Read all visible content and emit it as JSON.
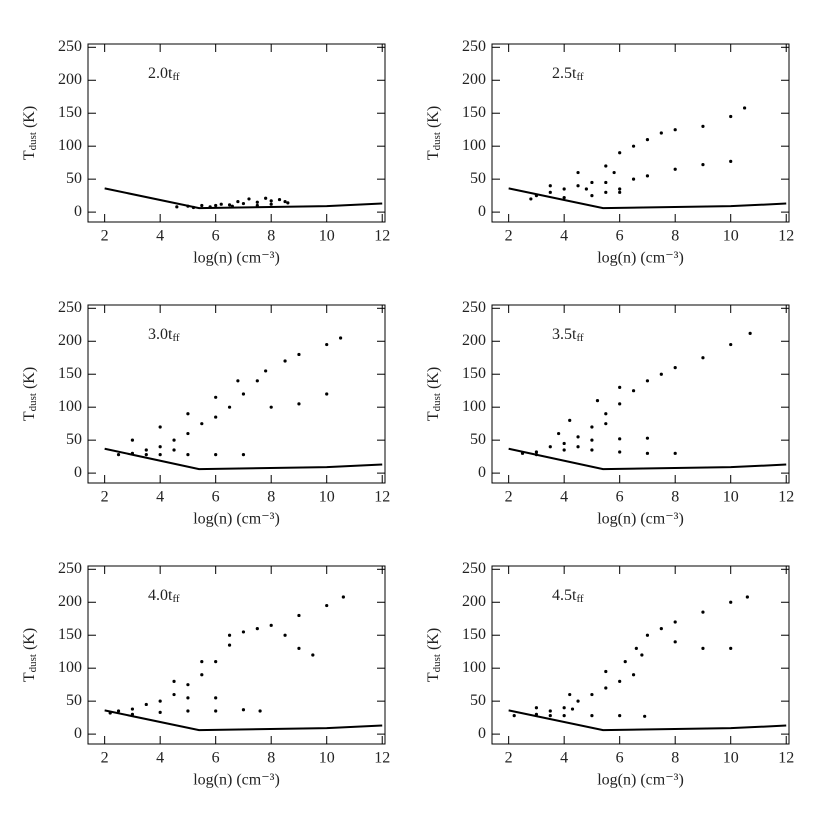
{
  "chart_data": [
    {
      "type": "scatter",
      "annotation": [
        "2.0t",
        "ff"
      ],
      "xlabel": "log(n) (cm⁻³)",
      "ylabel": [
        "T",
        "dust",
        " (K)"
      ],
      "xlim": [
        1.4,
        12.1
      ],
      "ylim": [
        -15,
        255
      ],
      "xticks": [
        2,
        4,
        6,
        8,
        10,
        12
      ],
      "yticks": [
        0,
        50,
        100,
        150,
        200,
        250
      ],
      "series": [
        {
          "mode": "markers",
          "color": "#000000",
          "x": [
            4.6,
            5,
            5.5,
            6,
            6.5,
            7,
            7.5,
            8,
            8.5,
            7.2,
            7.8,
            8.3,
            6.8,
            6.2,
            5.8,
            7.5,
            8,
            8.6,
            5.2,
            6.6
          ],
          "values": [
            8,
            9,
            10,
            10,
            11,
            13,
            15,
            17,
            16,
            20,
            21,
            19,
            16,
            12,
            8,
            10,
            12,
            14,
            7,
            9
          ]
        },
        {
          "mode": "line",
          "color": "#000000",
          "x": [
            2,
            5.4,
            10,
            12
          ],
          "values": [
            36,
            6,
            9,
            13
          ]
        }
      ]
    },
    {
      "type": "scatter",
      "annotation": [
        "2.5t",
        "ff"
      ],
      "xlabel": "log(n) (cm⁻³)",
      "ylabel": [
        "T",
        "dust",
        " (K)"
      ],
      "xlim": [
        1.4,
        12.1
      ],
      "ylim": [
        -15,
        255
      ],
      "xticks": [
        2,
        4,
        6,
        8,
        10,
        12
      ],
      "yticks": [
        0,
        50,
        100,
        150,
        200,
        250
      ],
      "series": [
        {
          "mode": "markers",
          "color": "#000000",
          "x": [
            2.8,
            3,
            3.5,
            4,
            4.5,
            5,
            5.5,
            6,
            5,
            4,
            3.5,
            4.5,
            5.5,
            6,
            6.5,
            7,
            7.5,
            8,
            9,
            10,
            10.5,
            6,
            7,
            8,
            9,
            10,
            6.5,
            5.8,
            4.8,
            5.5
          ],
          "values": [
            20,
            25,
            30,
            35,
            40,
            45,
            45,
            35,
            25,
            22,
            40,
            60,
            70,
            90,
            100,
            110,
            120,
            125,
            130,
            145,
            158,
            30,
            55,
            65,
            72,
            77,
            50,
            60,
            35,
            30
          ]
        },
        {
          "mode": "line",
          "color": "#000000",
          "x": [
            2,
            5.4,
            10,
            12
          ],
          "values": [
            36,
            6,
            9,
            13
          ]
        }
      ]
    },
    {
      "type": "scatter",
      "annotation": [
        "3.0t",
        "ff"
      ],
      "xlabel": "log(n) (cm⁻³)",
      "ylabel": [
        "T",
        "dust",
        " (K)"
      ],
      "xlim": [
        1.4,
        12.1
      ],
      "ylim": [
        -15,
        255
      ],
      "xticks": [
        2,
        4,
        6,
        8,
        10,
        12
      ],
      "yticks": [
        0,
        50,
        100,
        150,
        200,
        250
      ],
      "series": [
        {
          "mode": "markers",
          "color": "#000000",
          "x": [
            2.5,
            3,
            3.5,
            4,
            4.5,
            5,
            5.5,
            6,
            6.5,
            7,
            7.5,
            7.8,
            8.5,
            9,
            10,
            10.5,
            8,
            9,
            10,
            4,
            5,
            6,
            7,
            3,
            4,
            5,
            6,
            6.8,
            3.5,
            4.5
          ],
          "values": [
            28,
            30,
            35,
            40,
            50,
            60,
            75,
            85,
            100,
            120,
            140,
            155,
            170,
            180,
            195,
            205,
            100,
            105,
            120,
            28,
            28,
            28,
            28,
            50,
            70,
            90,
            115,
            140,
            28,
            35
          ]
        },
        {
          "mode": "line",
          "color": "#000000",
          "x": [
            2,
            5.4,
            10,
            12
          ],
          "values": [
            37,
            6,
            9,
            13
          ]
        }
      ]
    },
    {
      "type": "scatter",
      "annotation": [
        "3.5t",
        "ff"
      ],
      "xlabel": "log(n) (cm⁻³)",
      "ylabel": [
        "T",
        "dust",
        " (K)"
      ],
      "xlim": [
        1.4,
        12.1
      ],
      "ylim": [
        -15,
        255
      ],
      "xticks": [
        2,
        4,
        6,
        8,
        10,
        12
      ],
      "yticks": [
        0,
        50,
        100,
        150,
        200,
        250
      ],
      "series": [
        {
          "mode": "markers",
          "color": "#000000",
          "x": [
            2.5,
            3,
            3.5,
            4,
            4.5,
            5,
            5.5,
            6,
            6.5,
            7,
            7.5,
            8,
            9,
            10,
            10.7,
            5,
            6,
            7,
            8,
            5,
            6,
            7,
            4,
            3.8,
            4.2,
            5.2,
            6,
            3,
            4.5,
            5.5
          ],
          "values": [
            30,
            32,
            40,
            45,
            55,
            70,
            90,
            105,
            125,
            140,
            150,
            160,
            175,
            195,
            212,
            35,
            32,
            30,
            30,
            50,
            52,
            53,
            35,
            60,
            80,
            110,
            130,
            28,
            40,
            75
          ]
        },
        {
          "mode": "line",
          "color": "#000000",
          "x": [
            2,
            5.4,
            10,
            12
          ],
          "values": [
            37,
            6,
            9,
            13
          ]
        }
      ]
    },
    {
      "type": "scatter",
      "annotation": [
        "4.0t",
        "ff"
      ],
      "xlabel": "log(n) (cm⁻³)",
      "ylabel": [
        "T",
        "dust",
        " (K)"
      ],
      "xlim": [
        1.4,
        12.1
      ],
      "ylim": [
        -15,
        255
      ],
      "xticks": [
        2,
        4,
        6,
        8,
        10,
        12
      ],
      "yticks": [
        0,
        50,
        100,
        150,
        200,
        250
      ],
      "series": [
        {
          "mode": "markers",
          "color": "#000000",
          "x": [
            2.2,
            2.5,
            3,
            3.5,
            4,
            4.5,
            5,
            5.5,
            6,
            6.5,
            7,
            7.5,
            8,
            9,
            10,
            10.6,
            8.5,
            9,
            9.5,
            5,
            6,
            5,
            6,
            7,
            7.6,
            3,
            4,
            4.5,
            5.5,
            6.5
          ],
          "values": [
            32,
            35,
            38,
            45,
            50,
            60,
            75,
            90,
            110,
            135,
            155,
            160,
            165,
            180,
            195,
            208,
            150,
            130,
            120,
            55,
            55,
            35,
            35,
            37,
            35,
            30,
            33,
            80,
            110,
            150
          ]
        },
        {
          "mode": "line",
          "color": "#000000",
          "x": [
            2,
            5.4,
            10,
            12
          ],
          "values": [
            36,
            6,
            9,
            13
          ]
        }
      ]
    },
    {
      "type": "scatter",
      "annotation": [
        "4.5t",
        "ff"
      ],
      "xlabel": "log(n) (cm⁻³)",
      "ylabel": [
        "T",
        "dust",
        " (K)"
      ],
      "xlim": [
        1.4,
        12.1
      ],
      "ylim": [
        -15,
        255
      ],
      "xticks": [
        2,
        4,
        6,
        8,
        10,
        12
      ],
      "yticks": [
        0,
        50,
        100,
        150,
        200,
        250
      ],
      "series": [
        {
          "mode": "markers",
          "color": "#000000",
          "x": [
            2.2,
            3,
            3.5,
            4,
            4.5,
            5,
            5.5,
            6,
            6.5,
            6.8,
            7,
            7.5,
            8,
            9,
            10,
            10.6,
            8,
            9,
            10,
            5,
            6,
            6.9,
            4,
            3.5,
            4.3,
            5.5,
            6.2,
            6.6,
            3,
            4.2
          ],
          "values": [
            28,
            30,
            35,
            40,
            50,
            60,
            70,
            80,
            90,
            120,
            150,
            160,
            170,
            185,
            200,
            208,
            140,
            130,
            130,
            28,
            28,
            27,
            28,
            28,
            38,
            95,
            110,
            130,
            40,
            60
          ]
        },
        {
          "mode": "line",
          "color": "#000000",
          "x": [
            2,
            5.4,
            10,
            12
          ],
          "values": [
            36,
            6,
            9,
            13
          ]
        }
      ]
    }
  ]
}
